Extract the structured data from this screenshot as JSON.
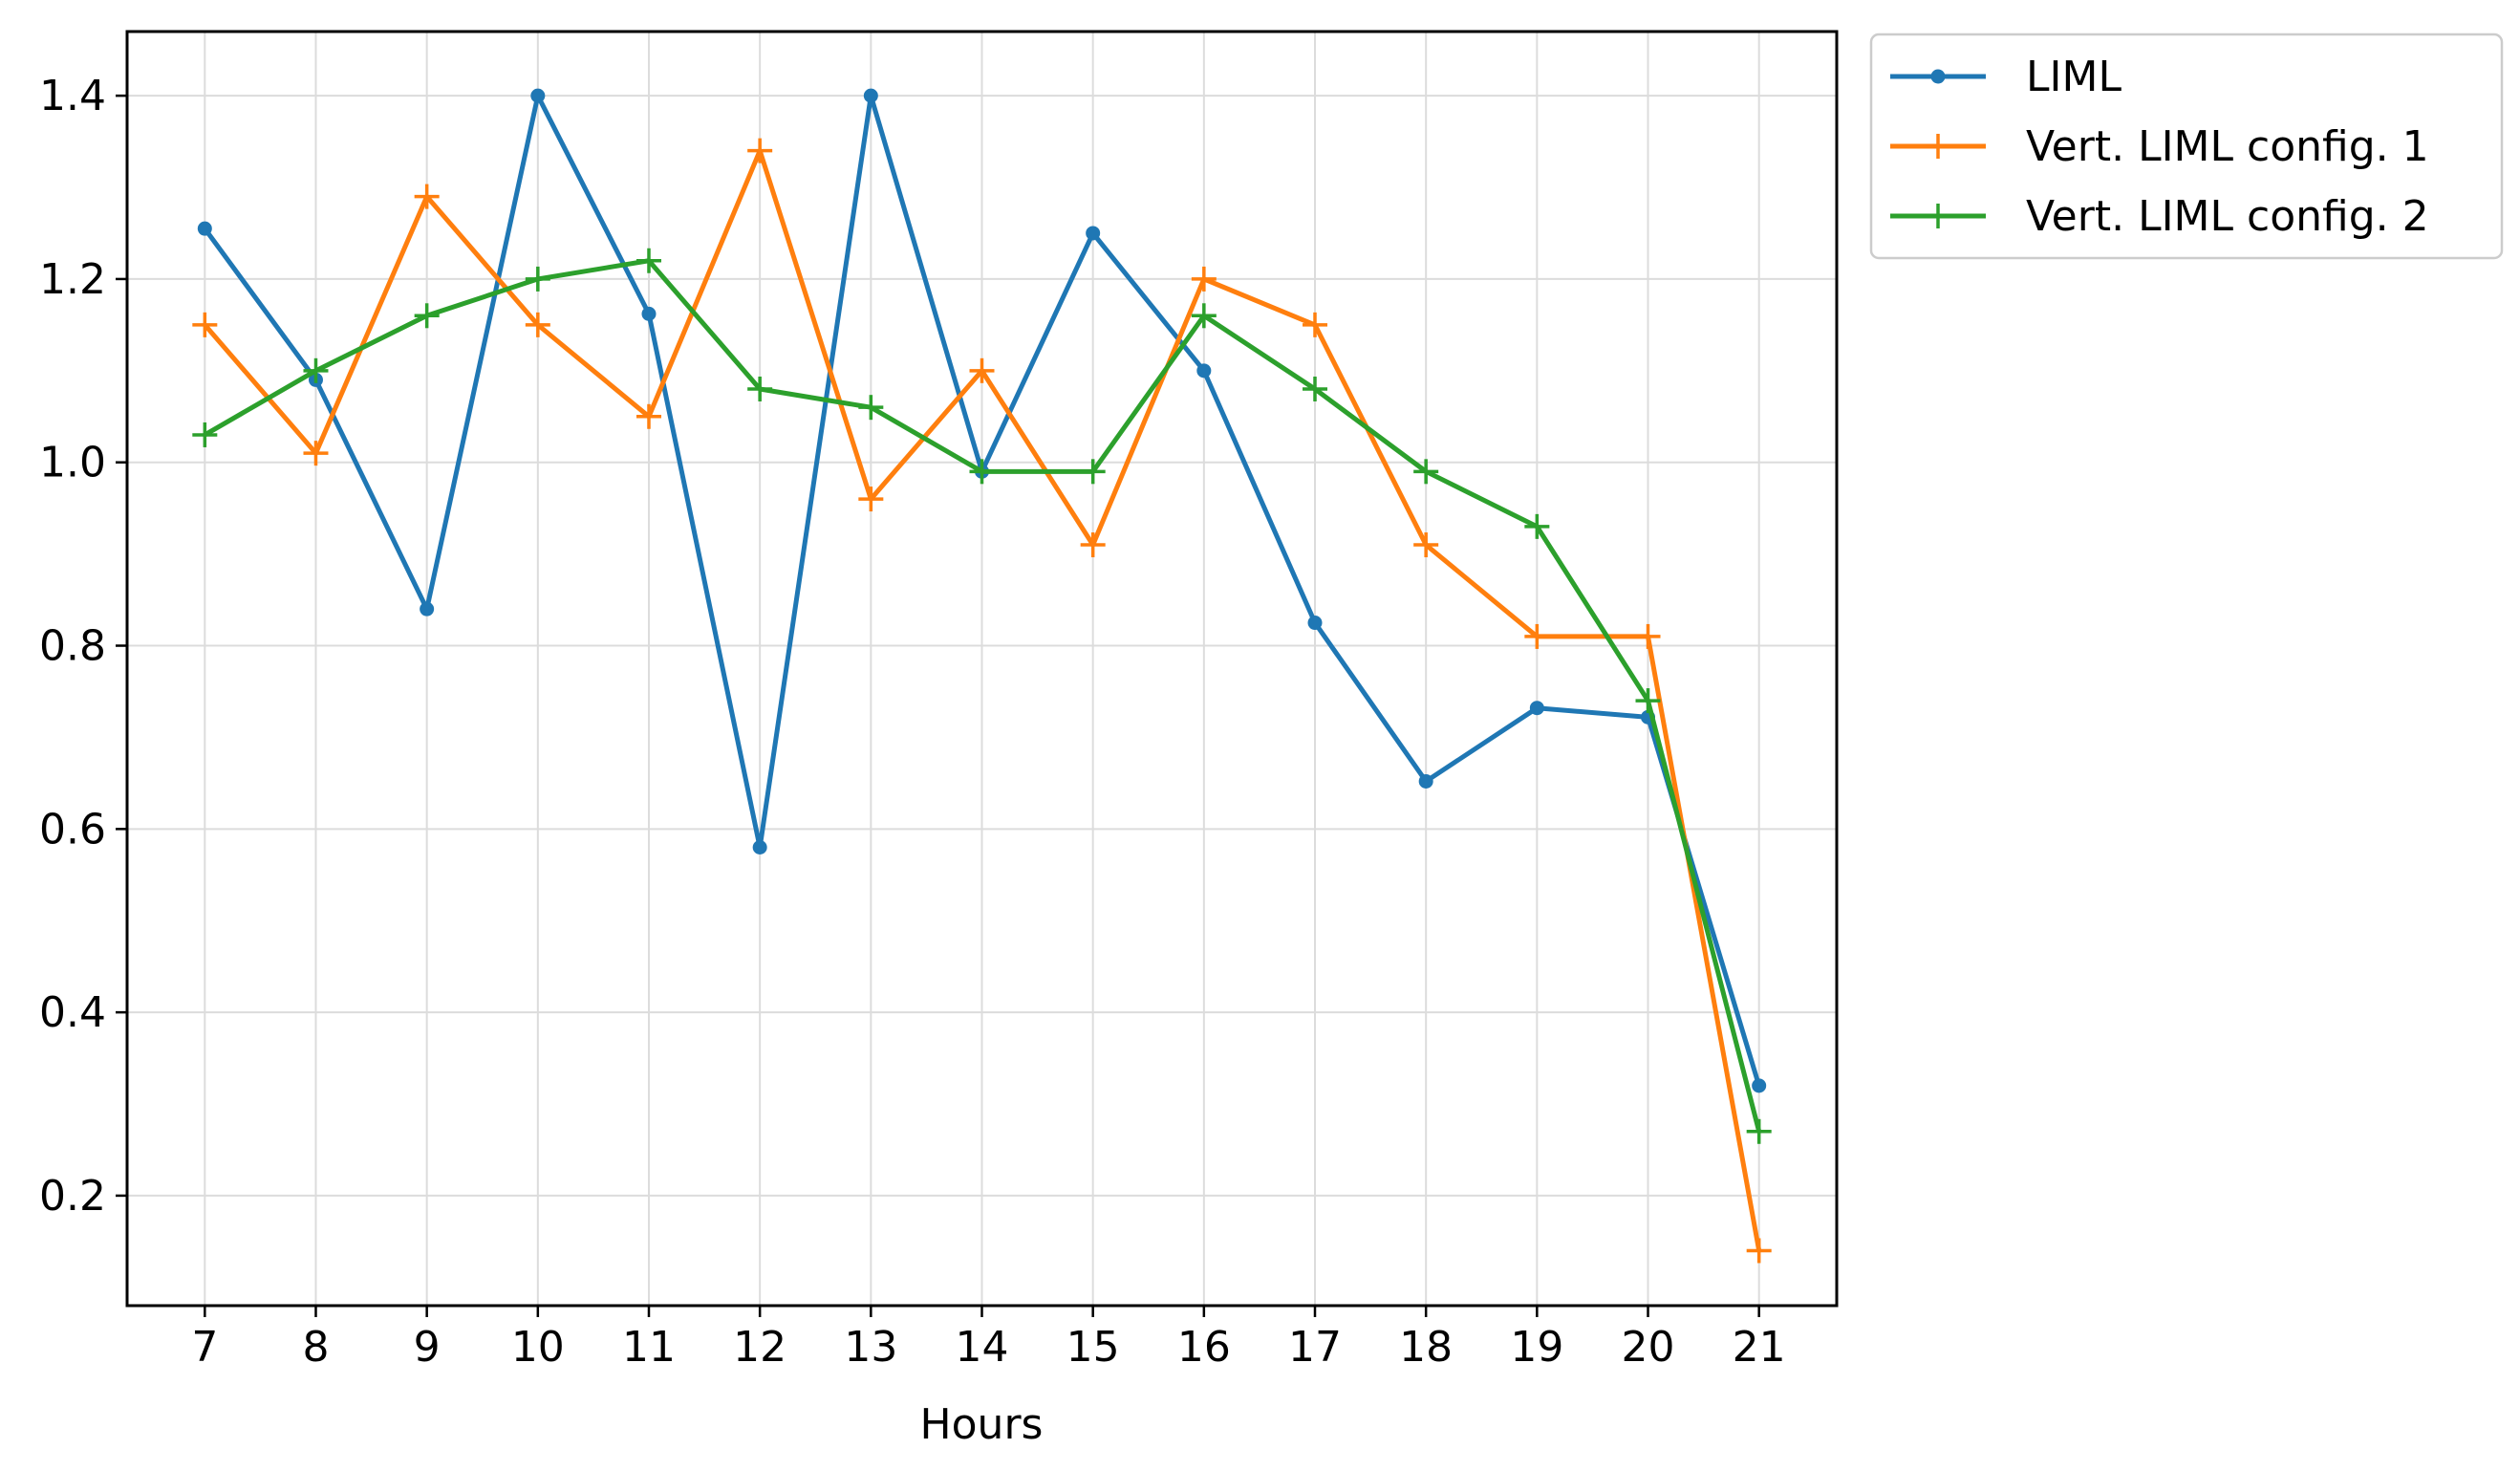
{
  "chart_data": {
    "type": "line",
    "xlabel": "Hours",
    "ylabel": "",
    "x": [
      7,
      8,
      9,
      10,
      11,
      12,
      13,
      14,
      15,
      16,
      17,
      18,
      19,
      20,
      21
    ],
    "xlim": [
      6.3,
      21.7
    ],
    "ylim": [
      0.08,
      1.47
    ],
    "y_ticks": [
      0.2,
      0.4,
      0.6,
      0.8,
      1.0,
      1.2,
      1.4
    ],
    "y_tick_labels": [
      "0.2",
      "0.4",
      "0.6",
      "0.8",
      "1.0",
      "1.2",
      "1.4"
    ],
    "x_tick_labels": [
      "7",
      "8",
      "9",
      "10",
      "11",
      "12",
      "13",
      "14",
      "15",
      "16",
      "17",
      "18",
      "19",
      "20",
      "21"
    ],
    "grid": true,
    "legend_position": "outside top-right",
    "series": [
      {
        "name": "LIML",
        "color": "#1f77b4",
        "marker": "dot",
        "values": [
          1.255,
          1.09,
          0.84,
          1.4,
          1.162,
          0.58,
          1.4,
          0.99,
          1.25,
          1.1,
          0.825,
          0.652,
          0.732,
          0.722,
          0.32
        ]
      },
      {
        "name": "Vert. LIML config. 1",
        "color": "#ff7f0e",
        "marker": "plus",
        "values": [
          1.15,
          1.01,
          1.29,
          1.15,
          1.05,
          1.34,
          0.96,
          1.1,
          0.91,
          1.2,
          1.15,
          0.91,
          0.81,
          0.81,
          0.14
        ]
      },
      {
        "name": "Vert. LIML config. 2",
        "color": "#2ca02c",
        "marker": "plus",
        "values": [
          1.03,
          1.1,
          1.16,
          1.2,
          1.22,
          1.08,
          1.06,
          0.99,
          0.99,
          1.16,
          1.08,
          0.99,
          0.93,
          0.74,
          0.27
        ]
      }
    ]
  }
}
